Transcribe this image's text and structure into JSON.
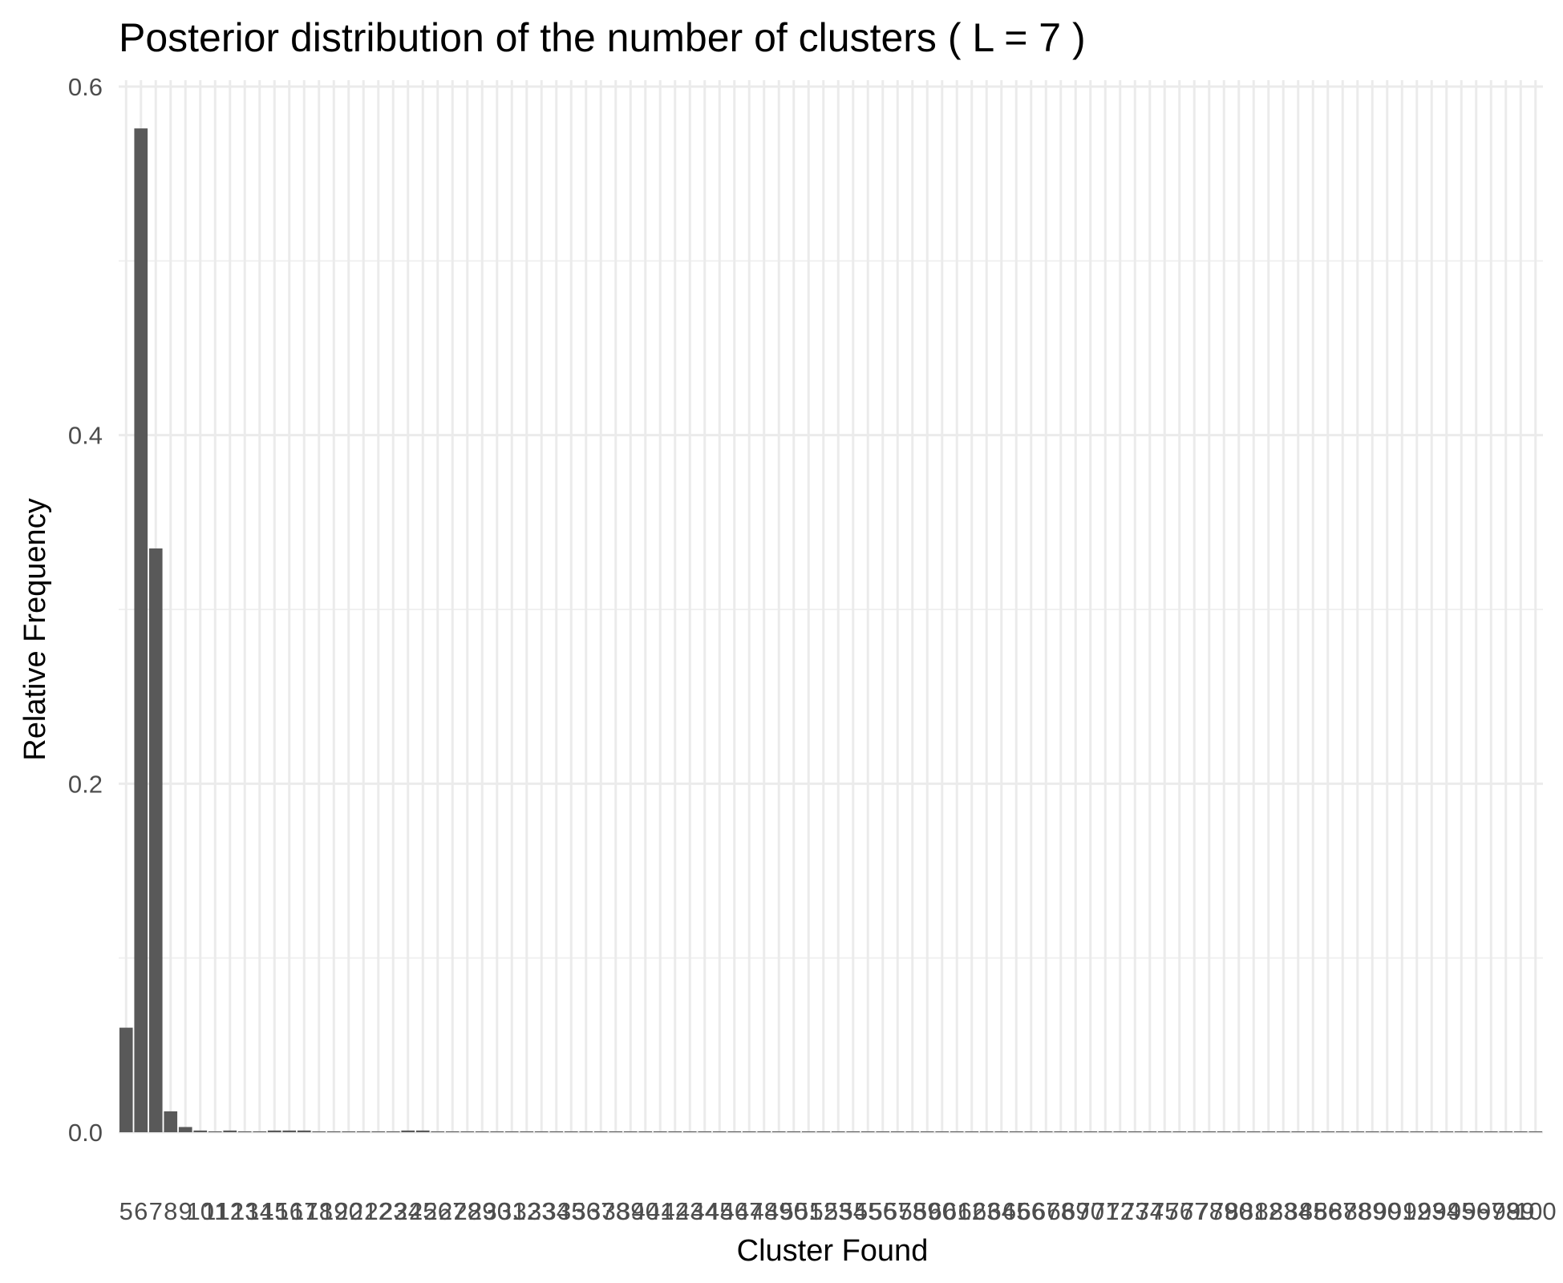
{
  "chart_data": {
    "type": "bar",
    "title": "Posterior distribution of the number of clusters ( L = 7 )",
    "xlabel": "Cluster Found",
    "ylabel": "Relative Frequency",
    "x_range": [
      5,
      100
    ],
    "ylim": [
      0,
      0.6
    ],
    "y_ticks": [
      0.0,
      0.2,
      0.4,
      0.6
    ],
    "y_tick_labels": [
      "0.0",
      "0.2",
      "0.4",
      "0.6"
    ],
    "grid": true,
    "bar_color": "#595959",
    "categories": [
      "5",
      "6",
      "7",
      "8",
      "9",
      "10",
      "11",
      "12",
      "13",
      "14",
      "15",
      "16",
      "17",
      "18",
      "19",
      "20",
      "21",
      "22",
      "23",
      "24",
      "25",
      "26",
      "27",
      "28",
      "29",
      "30",
      "31",
      "32",
      "33",
      "34",
      "35",
      "36",
      "37",
      "38",
      "39",
      "40",
      "41",
      "42",
      "43",
      "44",
      "45",
      "46",
      "47",
      "48",
      "49",
      "50",
      "51",
      "52",
      "53",
      "54",
      "55",
      "56",
      "57",
      "58",
      "59",
      "60",
      "61",
      "62",
      "63",
      "64",
      "65",
      "66",
      "67",
      "68",
      "69",
      "70",
      "71",
      "72",
      "73",
      "74",
      "75",
      "76",
      "77",
      "78",
      "79",
      "80",
      "81",
      "82",
      "83",
      "84",
      "85",
      "86",
      "87",
      "88",
      "89",
      "90",
      "91",
      "92",
      "93",
      "94",
      "95",
      "96",
      "97",
      "98",
      "99",
      "100"
    ],
    "values": [
      0.06,
      0.576,
      0.335,
      0.012,
      0.003,
      0.001,
      0.0005,
      0.001,
      0.0005,
      0.0005,
      0.001,
      0.001,
      0.001,
      0.0005,
      0.0005,
      0.0005,
      0.0005,
      0.0005,
      0.0005,
      0.001,
      0.001,
      0.0005,
      0.0005,
      0.0005,
      0.0005,
      0.0005,
      0.0005,
      0.0005,
      0.0005,
      0.0005,
      0.0005,
      0.0005,
      0.0005,
      0.0005,
      0.0005,
      0.0005,
      0.0005,
      0.0005,
      0.0005,
      0.0005,
      0.0005,
      0.0005,
      0.0005,
      0.0005,
      0.0005,
      0.0005,
      0.0005,
      0.0005,
      0.0005,
      0.0005,
      0.0005,
      0.0005,
      0.0005,
      0.0005,
      0.0005,
      0.0005,
      0.0005,
      0.0005,
      0.0005,
      0.0005,
      0.0005,
      0.0005,
      0.0005,
      0.0005,
      0.0005,
      0.0005,
      0.0005,
      0.0005,
      0.0005,
      0.0005,
      0.0005,
      0.0005,
      0.0005,
      0.0005,
      0.0005,
      0.0005,
      0.0005,
      0.0005,
      0.0005,
      0.0005,
      0.0005,
      0.0005,
      0.0005,
      0.0005,
      0.0005,
      0.0005,
      0.0005,
      0.0005,
      0.0005,
      0.0005,
      0.0005,
      0.0005,
      0.0005,
      0.0005,
      0.0005,
      0.0005
    ]
  }
}
